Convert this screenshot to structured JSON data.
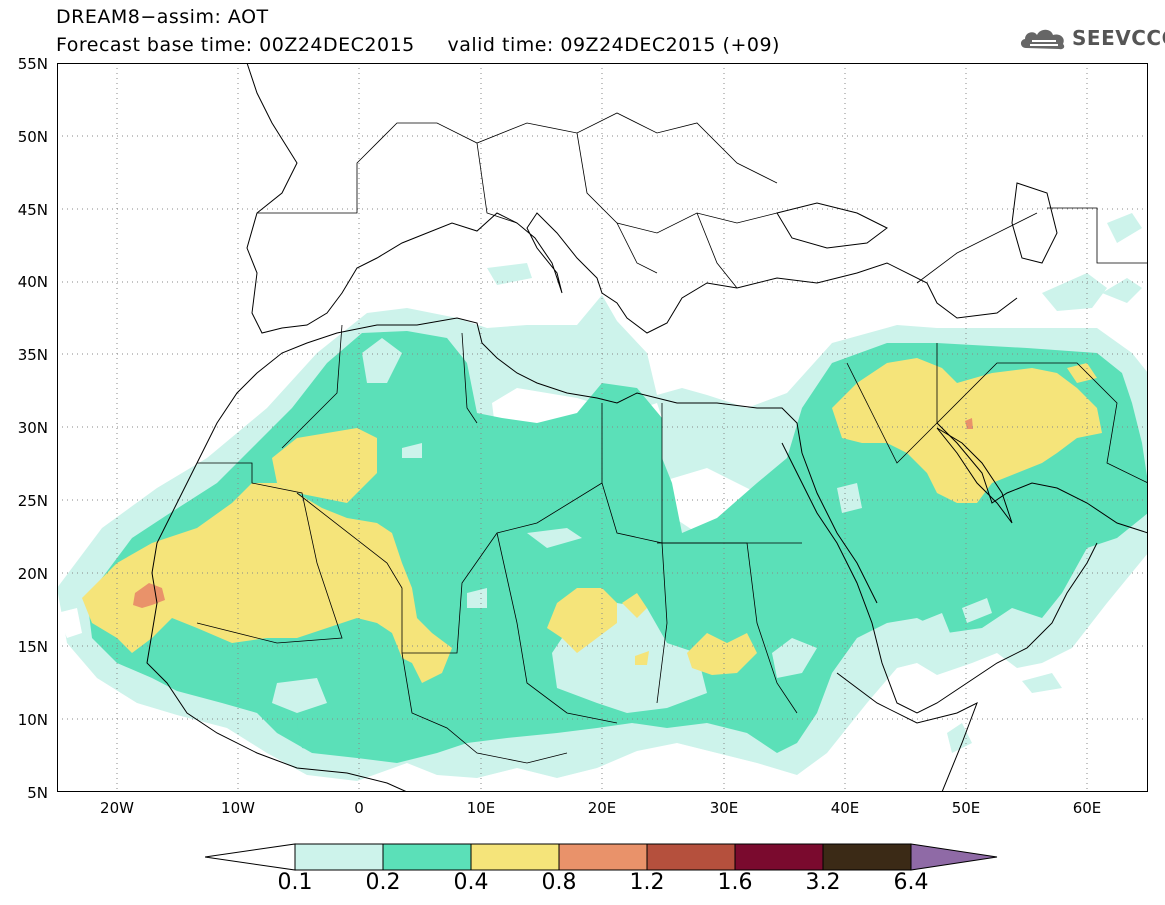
{
  "title_line1": "DREAM8−assim: AOT",
  "title_line2": "Forecast base time: 00Z24DEC2015     valid time: 09Z24DEC2015 (+09)",
  "logo_text": "SEEVCCC",
  "logo_icon": "cloud-icon",
  "lat_labels": [
    "55N",
    "50N",
    "45N",
    "40N",
    "35N",
    "30N",
    "25N",
    "20N",
    "15N",
    "10N",
    "5N"
  ],
  "lon_labels": [
    "20W",
    "10W",
    "0",
    "10E",
    "20E",
    "30E",
    "40E",
    "50E",
    "60E"
  ],
  "colorbar": {
    "labels": [
      "0.1",
      "0.2",
      "0.4",
      "0.8",
      "1.2",
      "1.6",
      "3.2",
      "6.4"
    ],
    "colors": [
      "#ffffff",
      "#cdf3eb",
      "#5be0b8",
      "#f5e47a",
      "#e9926a",
      "#b5503d",
      "#7a0a2e",
      "#3b2a16",
      "#8f6aa6"
    ]
  },
  "colors": {
    "aot_0_1": "#cdf3eb",
    "aot_0_2": "#5be0b8",
    "aot_0_4": "#f5e47a",
    "aot_0_8": "#e9926a",
    "grid": "#888888",
    "border": "#000000"
  }
}
